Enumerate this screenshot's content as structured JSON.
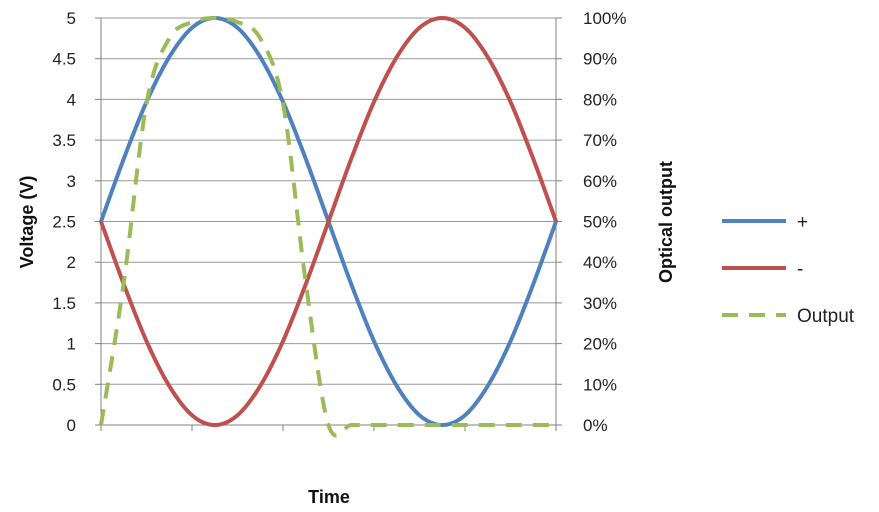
{
  "chart_data": {
    "type": "line",
    "xlabel": "Time",
    "ylabel": "Voltage (V)",
    "y2label": "Optical output",
    "ylim": [
      0,
      5
    ],
    "y2lim": [
      0,
      1
    ],
    "yticks": [
      "0",
      "0.5",
      "1",
      "1.5",
      "2",
      "2.5",
      "3",
      "3.5",
      "4",
      "4.5",
      "5"
    ],
    "y2ticks": [
      "0%",
      "10%",
      "20%",
      "30%",
      "40%",
      "50%",
      "60%",
      "70%",
      "80%",
      "90%",
      "100%"
    ],
    "grid": true,
    "legend": "right",
    "x": [
      0,
      0.05,
      0.1,
      0.15,
      0.2,
      0.25,
      0.3,
      0.35,
      0.4,
      0.45,
      0.5,
      0.55,
      0.6,
      0.65,
      0.7,
      0.75,
      0.8,
      0.85,
      0.9,
      0.95,
      1
    ],
    "series": [
      {
        "name": "+",
        "axis": "left",
        "color": "#4f81bd",
        "dash": "solid",
        "values": [
          2.5,
          3.27,
          3.97,
          4.52,
          4.88,
          5.0,
          4.88,
          4.52,
          3.97,
          3.27,
          2.5,
          1.73,
          1.03,
          0.48,
          0.12,
          0.0,
          0.12,
          0.48,
          1.03,
          1.73,
          2.5
        ]
      },
      {
        "name": "-",
        "axis": "left",
        "color": "#c0504d",
        "dash": "solid",
        "values": [
          2.5,
          1.73,
          1.03,
          0.48,
          0.12,
          0.0,
          0.12,
          0.48,
          1.03,
          1.73,
          2.5,
          3.27,
          3.97,
          4.52,
          4.88,
          5.0,
          4.88,
          4.52,
          3.97,
          3.27,
          2.5
        ]
      },
      {
        "name": "Output",
        "axis": "right",
        "color": "#9bbb59",
        "dash": "dashed",
        "values": [
          0.0,
          0.35,
          0.79,
          0.95,
          0.99,
          1.0,
          0.99,
          0.95,
          0.79,
          0.35,
          0.0,
          0.0,
          0.0,
          0.0,
          0.0,
          0.0,
          0.0,
          0.0,
          0.0,
          0.0,
          0.0
        ]
      }
    ]
  }
}
